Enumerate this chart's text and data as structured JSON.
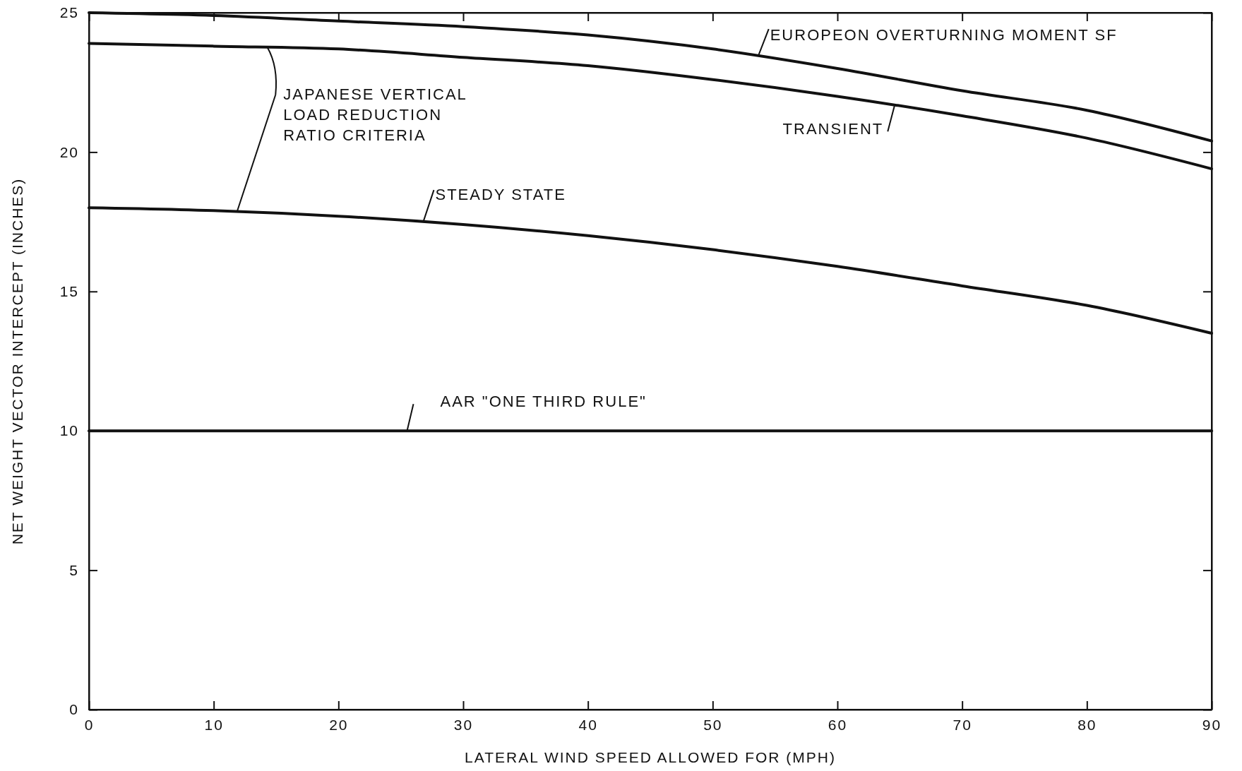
{
  "chart_data": {
    "type": "line",
    "xlabel": "LATERAL WIND SPEED ALLOWED FOR (MPH)",
    "ylabel": "NET WEIGHT VECTOR INTERCEPT (INCHES)",
    "x": [
      0,
      10,
      20,
      30,
      40,
      50,
      60,
      70,
      80,
      90
    ],
    "series": [
      {
        "color": "#111111",
        "values": [
          25.0,
          24.9,
          24.7,
          24.5,
          24.2,
          23.7,
          23.0,
          22.2,
          21.5,
          20.4
        ]
      },
      {
        "color": "#111111",
        "values": [
          23.9,
          23.8,
          23.7,
          23.4,
          23.1,
          22.6,
          22.0,
          21.3,
          20.5,
          19.4
        ]
      },
      {
        "color": "#111111",
        "values": [
          18.0,
          17.9,
          17.7,
          17.4,
          17.0,
          16.5,
          15.9,
          15.2,
          14.5,
          13.5
        ]
      },
      {
        "color": "#111111",
        "values": [
          10,
          10,
          10,
          10,
          10,
          10,
          10,
          10,
          10,
          10
        ]
      }
    ],
    "xlim": [
      0,
      90
    ],
    "xticks": [
      0,
      10,
      20,
      30,
      40,
      50,
      60,
      70,
      80,
      90
    ],
    "ylim": [
      0,
      25
    ],
    "yticks": [
      0,
      5,
      10,
      15,
      20,
      25
    ],
    "annotations": [
      {
        "text": "EUROPEON OVERTURNING MOMENT SF",
        "x": 53.7,
        "y": 23.5
      },
      {
        "text": "TRANSIENT",
        "x": 64.6,
        "y": 21.7
      },
      {
        "text": "JAPANESE VERTICAL\nLOAD REDUCTION\nRATIO CRITERIA",
        "x": 11.9,
        "y": 17.9
      },
      {
        "text": "STEADY STATE",
        "x": 26.8,
        "y": 17.5
      },
      {
        "text": "AAR \"ONE THIRD RULE\"",
        "x": 25.5,
        "y": 10
      }
    ]
  }
}
